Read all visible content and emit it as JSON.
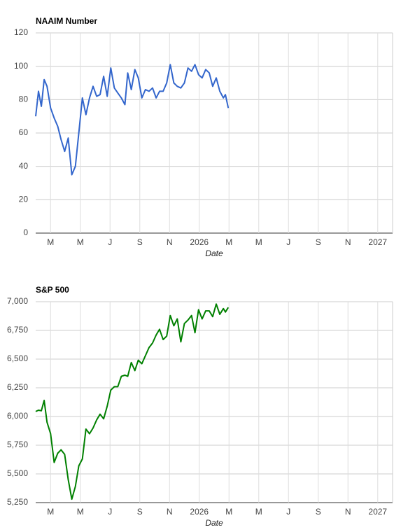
{
  "chart_data": [
    {
      "type": "line",
      "title": "NAAIM Number",
      "x_label": "Date",
      "color": "#3366cc",
      "grid": true,
      "x": [
        1.0,
        1.19,
        1.38,
        1.57,
        1.76,
        2.0,
        2.24,
        2.48,
        2.71,
        2.95,
        3.19,
        3.43,
        3.67,
        3.9,
        4.14,
        4.38,
        4.62,
        4.86,
        5.1,
        5.33,
        5.57,
        5.81,
        6.05,
        6.29,
        6.52,
        6.76,
        7.0,
        7.19,
        7.43,
        7.67,
        7.9,
        8.14,
        8.38,
        8.62,
        8.86,
        9.1,
        9.33,
        9.57,
        9.81,
        10.05,
        10.29,
        10.52,
        10.76,
        11.0,
        11.24,
        11.48,
        11.71,
        11.95,
        12.19,
        12.43,
        12.67,
        12.9,
        13.14,
        13.38,
        13.62,
        13.76,
        13.95
      ],
      "values": [
        70,
        85,
        76,
        92,
        88,
        75,
        69,
        64,
        56,
        49,
        57,
        35,
        40,
        60,
        81,
        71,
        81,
        88,
        82,
        83,
        94,
        82,
        99,
        87,
        84,
        81,
        77,
        96,
        86,
        98,
        93,
        81,
        86,
        85,
        87,
        81,
        85,
        85,
        90,
        101,
        90,
        88,
        87,
        90,
        99,
        97,
        101,
        95,
        93,
        98,
        96,
        88,
        93,
        85,
        81,
        83,
        75
      ],
      "xlim": [
        1,
        25
      ],
      "xticks": [
        {
          "value": 2,
          "label": "M"
        },
        {
          "value": 4,
          "label": "M"
        },
        {
          "value": 6,
          "label": "J"
        },
        {
          "value": 8,
          "label": "S"
        },
        {
          "value": 10,
          "label": "N"
        },
        {
          "value": 12,
          "label": "2026"
        },
        {
          "value": 14,
          "label": "M"
        },
        {
          "value": 16,
          "label": "M"
        },
        {
          "value": 18,
          "label": "J"
        },
        {
          "value": 20,
          "label": "S"
        },
        {
          "value": 22,
          "label": "N"
        },
        {
          "value": 24,
          "label": "2027"
        }
      ],
      "ylim": [
        0,
        120
      ],
      "yticks": [
        0,
        20,
        40,
        60,
        80,
        100,
        120
      ]
    },
    {
      "type": "line",
      "title": "S&P 500",
      "x_label": "Date",
      "color": "#008000",
      "grid": true,
      "x": [
        1.0,
        1.19,
        1.38,
        1.57,
        1.76,
        2.0,
        2.24,
        2.48,
        2.71,
        2.95,
        3.19,
        3.43,
        3.67,
        3.9,
        4.14,
        4.38,
        4.62,
        4.86,
        5.1,
        5.33,
        5.57,
        5.81,
        6.05,
        6.29,
        6.52,
        6.76,
        7.0,
        7.19,
        7.43,
        7.67,
        7.9,
        8.14,
        8.38,
        8.62,
        8.86,
        9.1,
        9.33,
        9.57,
        9.81,
        10.05,
        10.29,
        10.52,
        10.76,
        11.0,
        11.24,
        11.48,
        11.71,
        11.95,
        12.19,
        12.43,
        12.67,
        12.9,
        13.14,
        13.38,
        13.62,
        13.76,
        13.95
      ],
      "values": [
        6043,
        6055,
        6050,
        6140,
        5950,
        5850,
        5600,
        5680,
        5710,
        5670,
        5450,
        5280,
        5390,
        5570,
        5630,
        5890,
        5850,
        5900,
        5970,
        6020,
        5980,
        6090,
        6230,
        6260,
        6260,
        6350,
        6360,
        6350,
        6470,
        6400,
        6490,
        6460,
        6530,
        6600,
        6640,
        6710,
        6760,
        6670,
        6700,
        6880,
        6790,
        6850,
        6650,
        6810,
        6840,
        6880,
        6730,
        6930,
        6850,
        6920,
        6920,
        6870,
        6980,
        6890,
        6940,
        6910,
        6950
      ],
      "xlim": [
        1,
        25
      ],
      "xticks": [
        {
          "value": 2,
          "label": "M"
        },
        {
          "value": 4,
          "label": "M"
        },
        {
          "value": 6,
          "label": "J"
        },
        {
          "value": 8,
          "label": "S"
        },
        {
          "value": 10,
          "label": "N"
        },
        {
          "value": 12,
          "label": "2026"
        },
        {
          "value": 14,
          "label": "M"
        },
        {
          "value": 16,
          "label": "M"
        },
        {
          "value": 18,
          "label": "J"
        },
        {
          "value": 20,
          "label": "S"
        },
        {
          "value": 22,
          "label": "N"
        },
        {
          "value": 24,
          "label": "2027"
        }
      ],
      "ylim": [
        5250,
        7000
      ],
      "yticks": [
        {
          "value": 5250,
          "label": "5,250"
        },
        {
          "value": 5500,
          "label": "5,500"
        },
        {
          "value": 5750,
          "label": "5,750"
        },
        {
          "value": 6000,
          "label": "6,000"
        },
        {
          "value": 6250,
          "label": "6,250"
        },
        {
          "value": 6500,
          "label": "6,500"
        },
        {
          "value": 6750,
          "label": "6,750"
        },
        {
          "value": 7000,
          "label": "7,000"
        }
      ]
    }
  ]
}
